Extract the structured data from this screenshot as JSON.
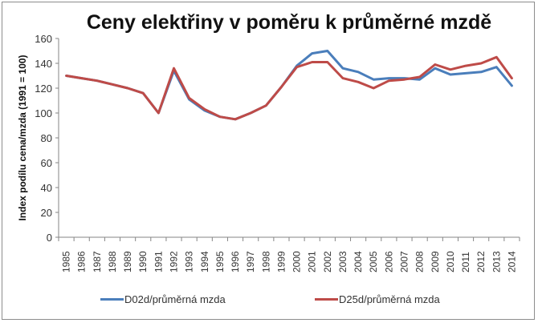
{
  "chart_data": {
    "type": "line",
    "title": "Ceny elektřiny v poměru k průměrné mzdě",
    "xlabel": "",
    "ylabel": "Index podílu cena/mzda (1991 = 100)",
    "ylim": [
      0,
      160
    ],
    "yticks": [
      0,
      20,
      40,
      60,
      80,
      100,
      120,
      140,
      160
    ],
    "grid": false,
    "legend_position": "bottom",
    "x": [
      "1985",
      "1986",
      "1987",
      "1988",
      "1989",
      "1990",
      "1991",
      "1992",
      "1993",
      "1994",
      "1995",
      "1996",
      "1997",
      "1998",
      "1999",
      "2000",
      "2001",
      "2002",
      "2003",
      "2004",
      "2005",
      "2006",
      "2007",
      "2008",
      "2009",
      "2010",
      "2011",
      "2012",
      "2013",
      "2014"
    ],
    "series": [
      {
        "name": "D02d/průměrná mzda",
        "color": "#4a7ebb",
        "values": [
          130,
          128,
          126,
          123,
          120,
          116,
          100,
          134,
          111,
          102,
          97,
          95,
          100,
          106,
          121,
          138,
          148,
          150,
          136,
          133,
          127,
          128,
          128,
          127,
          136,
          131,
          132,
          133,
          137,
          122
        ]
      },
      {
        "name": "D25d/průměrná mzda",
        "color": "#be4b48",
        "values": [
          130,
          128,
          126,
          123,
          120,
          116,
          100,
          136,
          112,
          103,
          97,
          95,
          100,
          106,
          121,
          137,
          141,
          141,
          128,
          125,
          120,
          126,
          127,
          129,
          139,
          135,
          138,
          140,
          145,
          128
        ]
      }
    ]
  }
}
